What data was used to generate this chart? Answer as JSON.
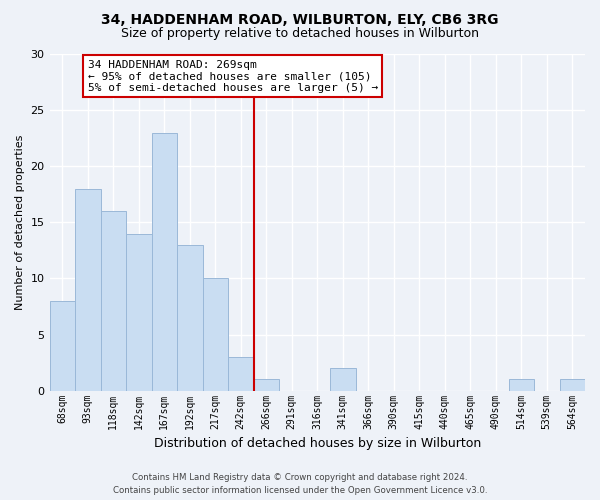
{
  "title": "34, HADDENHAM ROAD, WILBURTON, ELY, CB6 3RG",
  "subtitle": "Size of property relative to detached houses in Wilburton",
  "xlabel": "Distribution of detached houses by size in Wilburton",
  "ylabel": "Number of detached properties",
  "bar_labels": [
    "68sqm",
    "93sqm",
    "118sqm",
    "142sqm",
    "167sqm",
    "192sqm",
    "217sqm",
    "242sqm",
    "266sqm",
    "291sqm",
    "316sqm",
    "341sqm",
    "366sqm",
    "390sqm",
    "415sqm",
    "440sqm",
    "465sqm",
    "490sqm",
    "514sqm",
    "539sqm",
    "564sqm"
  ],
  "bar_values": [
    8,
    18,
    16,
    14,
    23,
    13,
    10,
    3,
    1,
    0,
    0,
    2,
    0,
    0,
    0,
    0,
    0,
    0,
    1,
    0,
    1
  ],
  "bar_color": "#c9ddf2",
  "bar_edge_color": "#9ab8d8",
  "vline_color": "#cc0000",
  "ylim": [
    0,
    30
  ],
  "yticks": [
    0,
    5,
    10,
    15,
    20,
    25,
    30
  ],
  "annotation_line1": "34 HADDENHAM ROAD: 269sqm",
  "annotation_line2": "← 95% of detached houses are smaller (105)",
  "annotation_line3": "5% of semi-detached houses are larger (5) →",
  "annotation_box_color": "#ffffff",
  "annotation_box_edge": "#cc0000",
  "footer_line1": "Contains HM Land Registry data © Crown copyright and database right 2024.",
  "footer_line2": "Contains public sector information licensed under the Open Government Licence v3.0.",
  "background_color": "#eef2f8",
  "grid_color": "#ffffff",
  "title_fontsize": 10,
  "subtitle_fontsize": 9
}
